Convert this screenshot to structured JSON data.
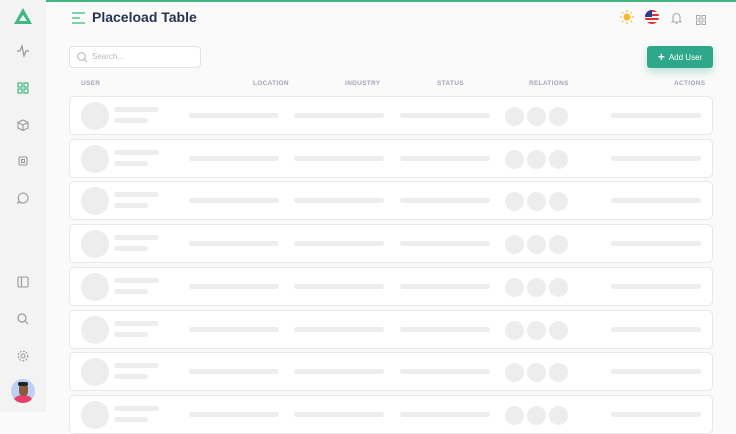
{
  "header": {
    "title": "Placeload Table"
  },
  "search": {
    "placeholder": "Search..."
  },
  "toolbar": {
    "add_label": "Add User"
  },
  "table": {
    "columns": [
      "USER",
      "LOCATION",
      "INDUSTRY",
      "STATUS",
      "RELATIONS",
      "ACTIONS"
    ],
    "placeholder_rows": 8
  },
  "colors": {
    "accent": "#41b883",
    "button": "#2ea88a",
    "title": "#283252"
  }
}
